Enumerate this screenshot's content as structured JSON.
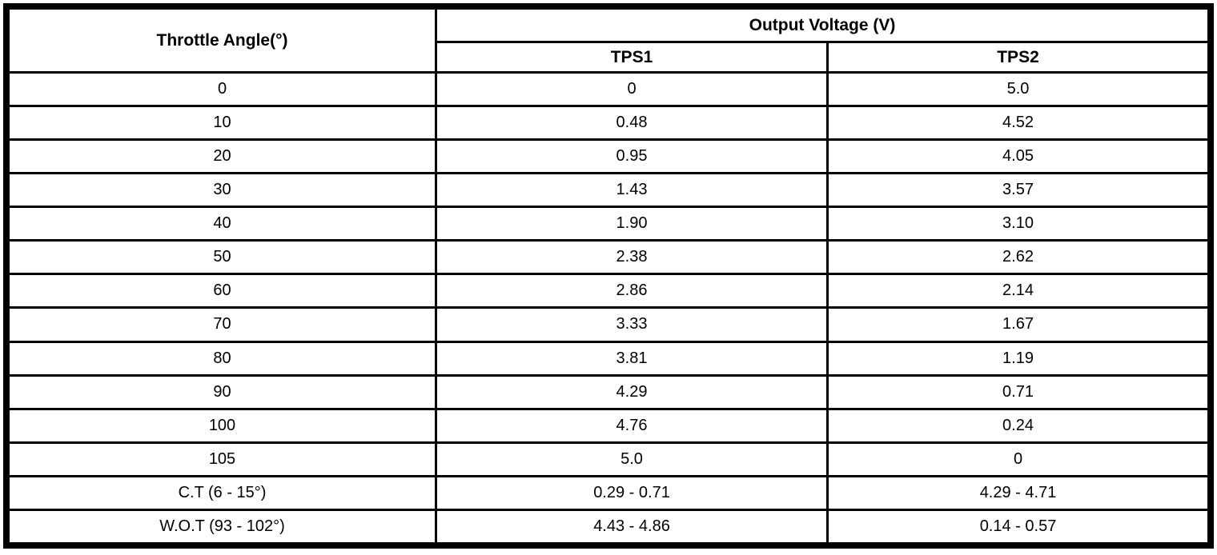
{
  "chart_data": {
    "type": "table",
    "title": "",
    "columns": [
      "Throttle Angle(°)",
      "TPS1",
      "TPS2"
    ],
    "column_groups": [
      {
        "label": "Output Voltage (V)",
        "spans": [
          "TPS1",
          "TPS2"
        ]
      }
    ],
    "rows": [
      [
        "0",
        "0",
        "5.0"
      ],
      [
        "10",
        "0.48",
        "4.52"
      ],
      [
        "20",
        "0.95",
        "4.05"
      ],
      [
        "30",
        "1.43",
        "3.57"
      ],
      [
        "40",
        "1.90",
        "3.10"
      ],
      [
        "50",
        "2.38",
        "2.62"
      ],
      [
        "60",
        "2.86",
        "2.14"
      ],
      [
        "70",
        "3.33",
        "1.67"
      ],
      [
        "80",
        "3.81",
        "1.19"
      ],
      [
        "90",
        "4.29",
        "0.71"
      ],
      [
        "100",
        "4.76",
        "0.24"
      ],
      [
        "105",
        "5.0",
        "0"
      ],
      [
        "C.T (6 - 15°)",
        "0.29 - 0.71",
        "4.29 - 4.71"
      ],
      [
        "W.O.T (93 - 102°)",
        "4.43 - 4.86",
        "0.14 - 0.57"
      ]
    ],
    "layout": {
      "grid": true,
      "header_rows": 2,
      "borders": "all"
    }
  },
  "table": {
    "angle_header": "Throttle Angle(°)",
    "voltage_group_header": "Output Voltage (V)",
    "tps1_header": "TPS1",
    "tps2_header": "TPS2"
  },
  "colors": {
    "border": "#000000",
    "background": "#ffffff",
    "text": "#000000"
  }
}
